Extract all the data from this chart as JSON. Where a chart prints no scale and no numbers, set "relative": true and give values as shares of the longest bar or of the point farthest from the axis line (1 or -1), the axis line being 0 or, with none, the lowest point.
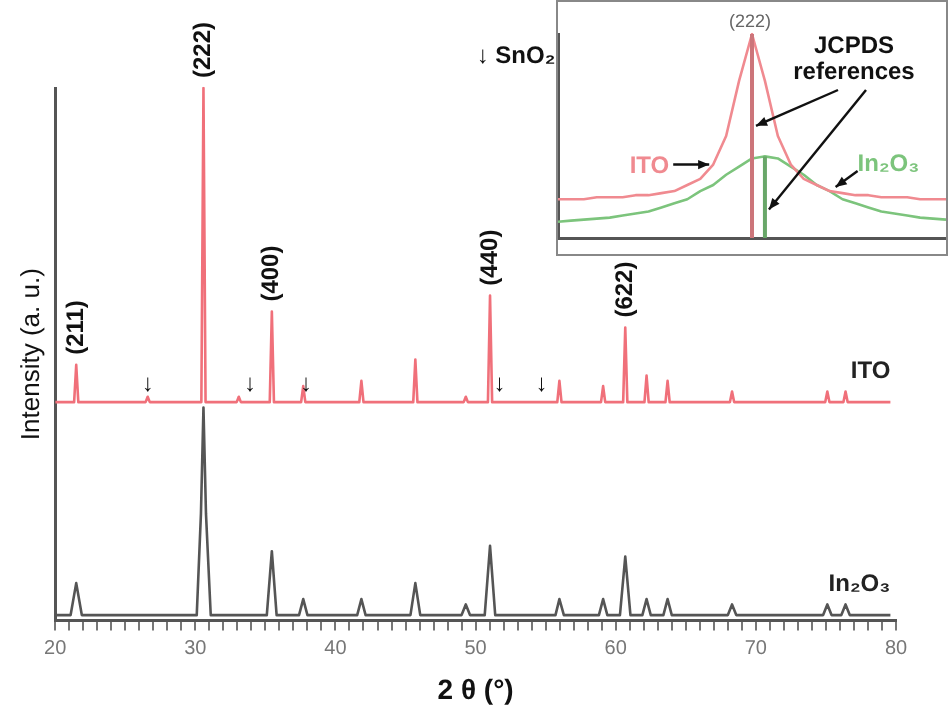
{
  "chart_data": [
    {
      "type": "line",
      "xlabel": "2 θ (°)",
      "ylabel": "Intensity (a. u.)",
      "relative": true,
      "legend": false,
      "grid": false,
      "marker": "none",
      "xlim": [
        20,
        80
      ],
      "xticks": [
        20,
        {
          "value": 21,
          "label": null
        },
        {
          "value": 22,
          "label": null
        },
        {
          "value": 23,
          "label": null
        },
        {
          "value": 24,
          "label": null
        },
        {
          "value": 25,
          "label": null
        },
        {
          "value": 26,
          "label": null
        },
        {
          "value": 27,
          "label": null
        },
        {
          "value": 28,
          "label": null
        },
        {
          "value": 29,
          "label": null
        },
        30,
        {
          "value": 31,
          "label": null
        },
        {
          "value": 32,
          "label": null
        },
        {
          "value": 33,
          "label": null
        },
        {
          "value": 34,
          "label": null
        },
        {
          "value": 35,
          "label": null
        },
        {
          "value": 36,
          "label": null
        },
        {
          "value": 37,
          "label": null
        },
        {
          "value": 38,
          "label": null
        },
        {
          "value": 39,
          "label": null
        },
        40,
        {
          "value": 41,
          "label": null
        },
        {
          "value": 42,
          "label": null
        },
        {
          "value": 43,
          "label": null
        },
        {
          "value": 44,
          "label": null
        },
        {
          "value": 45,
          "label": null
        },
        {
          "value": 46,
          "label": null
        },
        {
          "value": 47,
          "label": null
        },
        {
          "value": 48,
          "label": null
        },
        {
          "value": 49,
          "label": null
        },
        50,
        {
          "value": 51,
          "label": null
        },
        {
          "value": 52,
          "label": null
        },
        {
          "value": 53,
          "label": null
        },
        {
          "value": 54,
          "label": null
        },
        {
          "value": 55,
          "label": null
        },
        {
          "value": 56,
          "label": null
        },
        {
          "value": 57,
          "label": null
        },
        {
          "value": 58,
          "label": null
        },
        {
          "value": 59,
          "label": null
        },
        60,
        {
          "value": 61,
          "label": null
        },
        {
          "value": 62,
          "label": null
        },
        {
          "value": 63,
          "label": null
        },
        {
          "value": 64,
          "label": null
        },
        {
          "value": 65,
          "label": null
        },
        {
          "value": 66,
          "label": null
        },
        {
          "value": 67,
          "label": null
        },
        {
          "value": 68,
          "label": null
        },
        {
          "value": 69,
          "label": null
        },
        70,
        {
          "value": 71,
          "label": null
        },
        {
          "value": 72,
          "label": null
        },
        {
          "value": 73,
          "label": null
        },
        {
          "value": 74,
          "label": null
        },
        {
          "value": 75,
          "label": null
        },
        {
          "value": 76,
          "label": null
        },
        {
          "value": 77,
          "label": null
        },
        {
          "value": 78,
          "label": null
        },
        {
          "value": 79,
          "label": null
        },
        80
      ],
      "series": [
        {
          "name": "ITO",
          "color": "#f0707a",
          "x": [
            20,
            21.35,
            21.5,
            21.65,
            26.45,
            26.6,
            26.75,
            30.43,
            30.58,
            30.73,
            32.95,
            33.1,
            33.25,
            35.31,
            35.46,
            35.61,
            37.55,
            37.7,
            37.85,
            41.7,
            41.85,
            42.0,
            45.55,
            45.7,
            45.85,
            49.15,
            49.3,
            49.45,
            50.88,
            51.03,
            51.18,
            55.83,
            55.98,
            56.13,
            58.95,
            59.1,
            59.25,
            60.53,
            60.68,
            60.83,
            62.05,
            62.2,
            62.35,
            63.55,
            63.7,
            63.85,
            68.15,
            68.3,
            68.45,
            74.95,
            75.1,
            75.25,
            76.25,
            76.4,
            76.55,
            79.6
          ],
          "values": [
            0.41,
            0.41,
            0.48,
            0.41,
            0.41,
            0.42,
            0.41,
            0.41,
            1.0,
            0.41,
            0.41,
            0.42,
            0.41,
            0.41,
            0.58,
            0.41,
            0.41,
            0.44,
            0.41,
            0.41,
            0.45,
            0.41,
            0.41,
            0.49,
            0.41,
            0.41,
            0.42,
            0.41,
            0.41,
            0.61,
            0.41,
            0.41,
            0.45,
            0.41,
            0.41,
            0.44,
            0.41,
            0.41,
            0.55,
            0.41,
            0.41,
            0.46,
            0.41,
            0.41,
            0.45,
            0.41,
            0.41,
            0.43,
            0.41,
            0.41,
            0.43,
            0.41,
            0.41,
            0.43,
            0.41,
            0.41
          ]
        },
        {
          "name": "In₂O₃",
          "color": "#555555",
          "x": [
            20,
            21.1,
            21.5,
            21.9,
            30.1,
            30.4,
            30.58,
            30.76,
            31.1,
            35.1,
            35.46,
            35.8,
            37.4,
            37.7,
            38.0,
            41.55,
            41.85,
            42.15,
            45.35,
            45.7,
            46.05,
            49.0,
            49.3,
            49.6,
            50.65,
            51.03,
            51.4,
            55.7,
            55.98,
            56.3,
            58.8,
            59.1,
            59.4,
            60.3,
            60.68,
            61.05,
            61.9,
            62.2,
            62.5,
            63.4,
            63.7,
            64.0,
            68.0,
            68.3,
            68.6,
            74.8,
            75.1,
            75.4,
            76.1,
            76.4,
            76.7,
            79.6
          ],
          "values": [
            0.01,
            0.01,
            0.07,
            0.01,
            0.01,
            0.2,
            0.4,
            0.2,
            0.01,
            0.01,
            0.13,
            0.01,
            0.01,
            0.04,
            0.01,
            0.01,
            0.04,
            0.01,
            0.01,
            0.07,
            0.01,
            0.01,
            0.03,
            0.01,
            0.01,
            0.14,
            0.01,
            0.01,
            0.04,
            0.01,
            0.01,
            0.04,
            0.01,
            0.01,
            0.12,
            0.01,
            0.01,
            0.04,
            0.01,
            0.01,
            0.04,
            0.01,
            0.01,
            0.03,
            0.01,
            0.01,
            0.03,
            0.01,
            0.01,
            0.03,
            0.01,
            0.01
          ]
        }
      ],
      "annotations": [
        "↓ SnO₂",
        {
          "text": "(211)",
          "x": 21.5,
          "y": 0.48
        },
        {
          "text": "(222)",
          "x": 30.58,
          "y": 1.0
        },
        {
          "text": "(400)",
          "x": 35.46,
          "y": 0.58
        },
        {
          "text": "(440)",
          "x": 51.03,
          "y": 0.61
        },
        {
          "text": "(622)",
          "x": 60.68,
          "y": 0.55
        },
        {
          "text": "↓",
          "x": 26.6,
          "y": 0.41
        },
        {
          "text": "↓",
          "x": 33.9,
          "y": 0.41
        },
        {
          "text": "↓",
          "x": 37.9,
          "y": 0.41
        },
        {
          "text": "↓",
          "x": 51.7,
          "y": 0.41
        },
        {
          "text": "↓",
          "x": 54.7,
          "y": 0.41
        }
      ]
    },
    {
      "type": "line",
      "relative": true,
      "legend": false,
      "grid": false,
      "marker": "none",
      "categories": [
        null,
        null,
        null,
        null,
        null,
        null,
        null,
        null,
        null,
        null,
        null,
        null,
        null,
        null,
        null,
        null,
        null,
        null,
        null,
        null,
        null,
        null,
        null,
        null,
        null,
        null,
        null,
        null,
        null,
        null,
        null
      ],
      "series": [
        {
          "name": "ITO",
          "color": "#f08a90",
          "values": [
            0.19,
            0.19,
            0.19,
            0.2,
            0.2,
            0.2,
            0.21,
            0.21,
            0.22,
            0.23,
            0.26,
            0.29,
            0.36,
            0.5,
            0.77,
            1.0,
            0.77,
            0.5,
            0.36,
            0.29,
            0.26,
            0.23,
            0.22,
            0.21,
            0.21,
            0.2,
            0.2,
            0.2,
            0.19,
            0.19,
            0.19
          ]
        },
        {
          "name": "In₂O₃",
          "color": "#7cc47c",
          "values": [
            0.08,
            0.085,
            0.09,
            0.095,
            0.1,
            0.11,
            0.12,
            0.13,
            0.15,
            0.17,
            0.19,
            0.23,
            0.26,
            0.31,
            0.35,
            0.39,
            0.4,
            0.39,
            0.35,
            0.31,
            0.26,
            0.23,
            0.19,
            0.17,
            0.15,
            0.13,
            0.12,
            0.11,
            0.1,
            0.095,
            0.09
          ]
        }
      ],
      "annotations": [
        "JCPDS references",
        "(222)"
      ]
    }
  ]
}
